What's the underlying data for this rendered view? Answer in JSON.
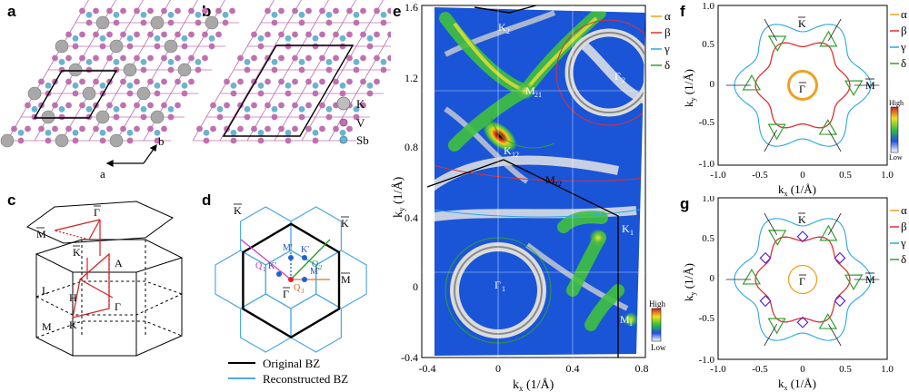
{
  "panels": {
    "a": {
      "label": "a"
    },
    "b": {
      "label": "b"
    },
    "c": {
      "label": "c",
      "points": {
        "gamma": "Γ",
        "mbar": "M",
        "kbar": "K",
        "A": "A",
        "L": "L",
        "H": "H",
        "M": "M",
        "G": "Γ",
        "K": "K"
      }
    },
    "d": {
      "label": "d",
      "points": {
        "kbar": "K",
        "kbar2": "K",
        "mbar_right": "M",
        "gamma": "Γ",
        "mprime": "M'",
        "kprime": "K'",
        "kprime2": "K'",
        "mprime2": "M'",
        "q1": "Q",
        "q1s": "1",
        "q2": "Q",
        "q2s": "2",
        "q3": "Q",
        "q3s": "3"
      },
      "legend": {
        "original": "Original BZ",
        "reconstructed": "Reconstructed BZ"
      }
    },
    "e": {
      "label": "e",
      "xlabel": "k",
      "xlabel_sub": "x",
      "xunit": " (1/Å)",
      "ylabel": "k",
      "ylabel_sub": "y",
      "yunit": " (1/Å)",
      "xticks": [
        "-0.4",
        "0",
        "0.4",
        "0.8"
      ],
      "yticks": [
        "1.6",
        "1.2",
        "0.8",
        "0.4",
        "0",
        "-0.4"
      ],
      "points": {
        "K2": "K",
        "K2s": "2",
        "M21": "M",
        "M21s": "21",
        "G2": "Γ",
        "G2s": "2",
        "K12": "K",
        "K12s": "12",
        "M12": "M",
        "M12s": "12",
        "K1": "K",
        "K1s": "1",
        "G1": "Γ",
        "G1s": "1",
        "M1": "M",
        "M1s": "1"
      },
      "colorbar": {
        "high": "High",
        "low": "Low"
      }
    },
    "f": {
      "label": "f",
      "xticks": [
        "-1.0",
        "-0.5",
        "0",
        "0.5",
        "1.0"
      ],
      "yticks": [
        "1.0",
        "0.5",
        "0",
        "-0.5",
        "-1.0"
      ],
      "points": {
        "K": "K",
        "G": "Γ",
        "M": "M"
      },
      "colorbar": {
        "high": "High",
        "low": "Low"
      }
    },
    "g": {
      "label": "g",
      "xticks": [
        "-1.0",
        "-0.5",
        "0",
        "0.5",
        "1.0"
      ],
      "yticks": [
        "1.0",
        "0.5",
        "0",
        "-0.5",
        "-1.0"
      ],
      "points": {
        "K": "K",
        "G": "Γ",
        "M": "M"
      }
    }
  },
  "atom_legend": {
    "K": "K",
    "V": "V",
    "Sb": "Sb"
  },
  "axes_ab": {
    "a": "a",
    "b": "b"
  },
  "band_legend": [
    {
      "name": "α",
      "color": "#f0a020"
    },
    {
      "name": "β",
      "color": "#e03030"
    },
    {
      "name": "γ",
      "color": "#2aa8e0"
    },
    {
      "name": "δ",
      "color": "#30a030"
    }
  ],
  "colors": {
    "v_atom": "#c070b0",
    "sb_atom": "#6ab4cf",
    "k_atom": "#a8a8a8",
    "bz_blue": "#4fa8e6",
    "heat_blue": "#1a55d8"
  }
}
